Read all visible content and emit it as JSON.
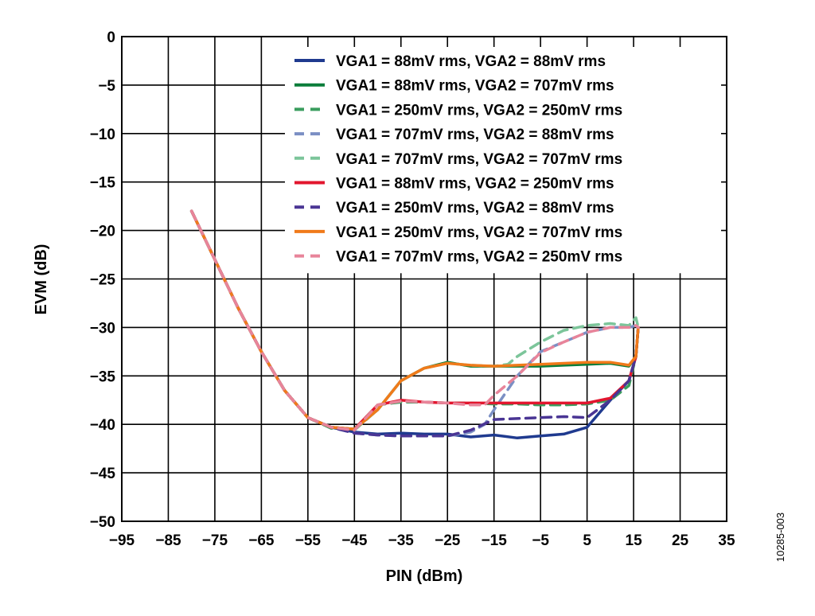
{
  "chart_data": {
    "type": "line",
    "title": "",
    "xlabel": "PIN (dBm)",
    "ylabel": "EVM (dB)",
    "xlim": [
      -95,
      35
    ],
    "ylim": [
      -50,
      0
    ],
    "xticks": [
      -95,
      -85,
      -75,
      -65,
      -55,
      -45,
      -35,
      -25,
      -15,
      -5,
      5,
      15,
      25,
      35
    ],
    "yticks": [
      0,
      -5,
      -10,
      -15,
      -20,
      -25,
      -30,
      -35,
      -40,
      -45,
      -50
    ],
    "tick_labels": {
      "x": [
        "−95",
        "−85",
        "−75",
        "−65",
        "−55",
        "−45",
        "−35",
        "−25",
        "−15",
        "−5",
        "5",
        "15",
        "25",
        "35"
      ],
      "y": [
        "0",
        "−5",
        "−10",
        "−15",
        "−20",
        "−25",
        "−30",
        "−35",
        "−40",
        "−45",
        "−50"
      ]
    },
    "grid": true,
    "legend_position": "top-right",
    "code": "10285-003",
    "series": [
      {
        "name": "VGA1 = 88mV rms, VGA2 = 88mV rms",
        "color": "#1f3a8f",
        "dash": "solid",
        "x": [
          -80,
          -75,
          -70,
          -65,
          -60,
          -55,
          -50,
          -45,
          -40,
          -35,
          -30,
          -25,
          -20,
          -15,
          -10,
          -5,
          0,
          5,
          10,
          14,
          15.5,
          16
        ],
        "y": [
          -18,
          -23,
          -28,
          -32.5,
          -36.5,
          -39.3,
          -40.3,
          -40.8,
          -41,
          -40.9,
          -41,
          -41,
          -41.3,
          -41.1,
          -41.4,
          -41.2,
          -41,
          -40.3,
          -37.5,
          -35.5,
          -33,
          -30
        ]
      },
      {
        "name": "VGA1 = 88mV rms, VGA2 = 707mV rms",
        "color": "#0a7d3a",
        "dash": "solid",
        "x": [
          -80,
          -75,
          -70,
          -65,
          -60,
          -55,
          -50,
          -45,
          -40,
          -35,
          -30,
          -25,
          -20,
          -15,
          -10,
          -5,
          0,
          5,
          10,
          14,
          15.5,
          16
        ],
        "y": [
          -18,
          -23,
          -28,
          -32.5,
          -36.5,
          -39.3,
          -40.3,
          -40.5,
          -38.5,
          -35.5,
          -34.2,
          -33.6,
          -34,
          -34,
          -34,
          -34,
          -33.9,
          -33.8,
          -33.7,
          -34,
          -33,
          -30
        ]
      },
      {
        "name": "VGA1 = 250mV rms, VGA2 = 250mV rms",
        "color": "#3a9d5e",
        "dash": "dashed",
        "x": [
          -80,
          -75,
          -70,
          -65,
          -60,
          -55,
          -50,
          -45,
          -40,
          -35,
          -30,
          -25,
          -20,
          -15,
          -10,
          -5,
          0,
          5,
          10,
          14,
          15.5,
          16
        ],
        "y": [
          -18,
          -23,
          -28,
          -32.5,
          -36.5,
          -39.3,
          -40.4,
          -40.5,
          -38,
          -37.7,
          -37.7,
          -37.8,
          -37.8,
          -37.9,
          -37.9,
          -38,
          -38,
          -37.9,
          -37.5,
          -36,
          -33,
          -30
        ]
      },
      {
        "name": "VGA1 = 707mV rms, VGA2 = 88mV rms",
        "color": "#7b8fc4",
        "dash": "dashed",
        "x": [
          -80,
          -75,
          -70,
          -65,
          -60,
          -55,
          -50,
          -45,
          -40,
          -35,
          -30,
          -25,
          -20,
          -17,
          -15,
          -10,
          -5,
          0,
          5,
          10,
          14,
          15.5,
          16
        ],
        "y": [
          -18,
          -23,
          -28,
          -32.5,
          -36.5,
          -39.3,
          -40.3,
          -40.9,
          -41.1,
          -41.2,
          -41.2,
          -41.2,
          -40.8,
          -40,
          -38.5,
          -35,
          -32.5,
          -31.5,
          -30.5,
          -30,
          -30,
          -29.8,
          -30
        ]
      },
      {
        "name": "VGA1 = 707mV rms, VGA2 = 707mV rms",
        "color": "#7cc59a",
        "dash": "dashed",
        "x": [
          -80,
          -75,
          -70,
          -65,
          -60,
          -55,
          -50,
          -45,
          -40,
          -35,
          -30,
          -25,
          -20,
          -15,
          -12,
          -10,
          -5,
          0,
          5,
          10,
          14,
          15.5,
          16
        ],
        "y": [
          -18,
          -23,
          -28,
          -32.5,
          -36.5,
          -39.3,
          -40.3,
          -40.6,
          -38.5,
          -35.5,
          -34.2,
          -33.7,
          -33.9,
          -34,
          -33.8,
          -33,
          -31.5,
          -30.3,
          -29.8,
          -29.6,
          -29.8,
          -29,
          -30
        ]
      },
      {
        "name": "VGA1 = 88mV rms, VGA2 = 250mV rms",
        "color": "#e2162e",
        "dash": "solid",
        "x": [
          -80,
          -75,
          -70,
          -65,
          -60,
          -55,
          -50,
          -45,
          -40,
          -35,
          -30,
          -25,
          -20,
          -15,
          -10,
          -5,
          0,
          5,
          10,
          14,
          15.5,
          16
        ],
        "y": [
          -18,
          -23,
          -28,
          -32.5,
          -36.5,
          -39.3,
          -40.3,
          -40.5,
          -38,
          -37.5,
          -37.7,
          -37.8,
          -37.8,
          -37.8,
          -37.8,
          -37.8,
          -37.8,
          -37.8,
          -37.3,
          -35.5,
          -33,
          -30
        ]
      },
      {
        "name": "VGA1 = 250mV rms, VGA2 = 88mV rms",
        "color": "#4a3594",
        "dash": "dashed",
        "x": [
          -80,
          -75,
          -70,
          -65,
          -60,
          -55,
          -50,
          -45,
          -40,
          -35,
          -30,
          -25,
          -20,
          -15,
          -10,
          -5,
          0,
          5,
          10,
          14,
          15.5,
          16
        ],
        "y": [
          -18,
          -23,
          -28,
          -32.5,
          -36.5,
          -39.3,
          -40.3,
          -40.9,
          -41.1,
          -41.2,
          -41.2,
          -41.2,
          -40.6,
          -39.5,
          -39.4,
          -39.3,
          -39.2,
          -39.3,
          -37.5,
          -35.5,
          -33,
          -30
        ]
      },
      {
        "name": "VGA1 = 250mV rms, VGA2 = 707mV rms",
        "color": "#f07a1a",
        "dash": "solid",
        "x": [
          -80,
          -75,
          -70,
          -65,
          -60,
          -55,
          -50,
          -45,
          -40,
          -35,
          -30,
          -25,
          -20,
          -15,
          -10,
          -5,
          0,
          5,
          10,
          14,
          15.5,
          16
        ],
        "y": [
          -18,
          -23,
          -28,
          -32.5,
          -36.5,
          -39.3,
          -40.3,
          -40.5,
          -38.5,
          -35.5,
          -34.2,
          -33.7,
          -33.9,
          -34,
          -33.9,
          -33.8,
          -33.7,
          -33.6,
          -33.6,
          -33.9,
          -33,
          -30
        ]
      },
      {
        "name": "VGA1 = 707mV rms, VGA2 = 250mV rms",
        "color": "#e8849a",
        "dash": "dashed",
        "x": [
          -80,
          -75,
          -70,
          -65,
          -60,
          -55,
          -50,
          -45,
          -40,
          -35,
          -30,
          -25,
          -20,
          -17,
          -15,
          -10,
          -5,
          0,
          5,
          10,
          14,
          15.5,
          16
        ],
        "y": [
          -18,
          -23,
          -28,
          -32.5,
          -36.5,
          -39.3,
          -40.3,
          -40.6,
          -38,
          -37.6,
          -37.7,
          -37.8,
          -38,
          -38,
          -37,
          -35,
          -32.6,
          -31.5,
          -30.5,
          -30,
          -30,
          -29.8,
          -30
        ]
      }
    ]
  }
}
